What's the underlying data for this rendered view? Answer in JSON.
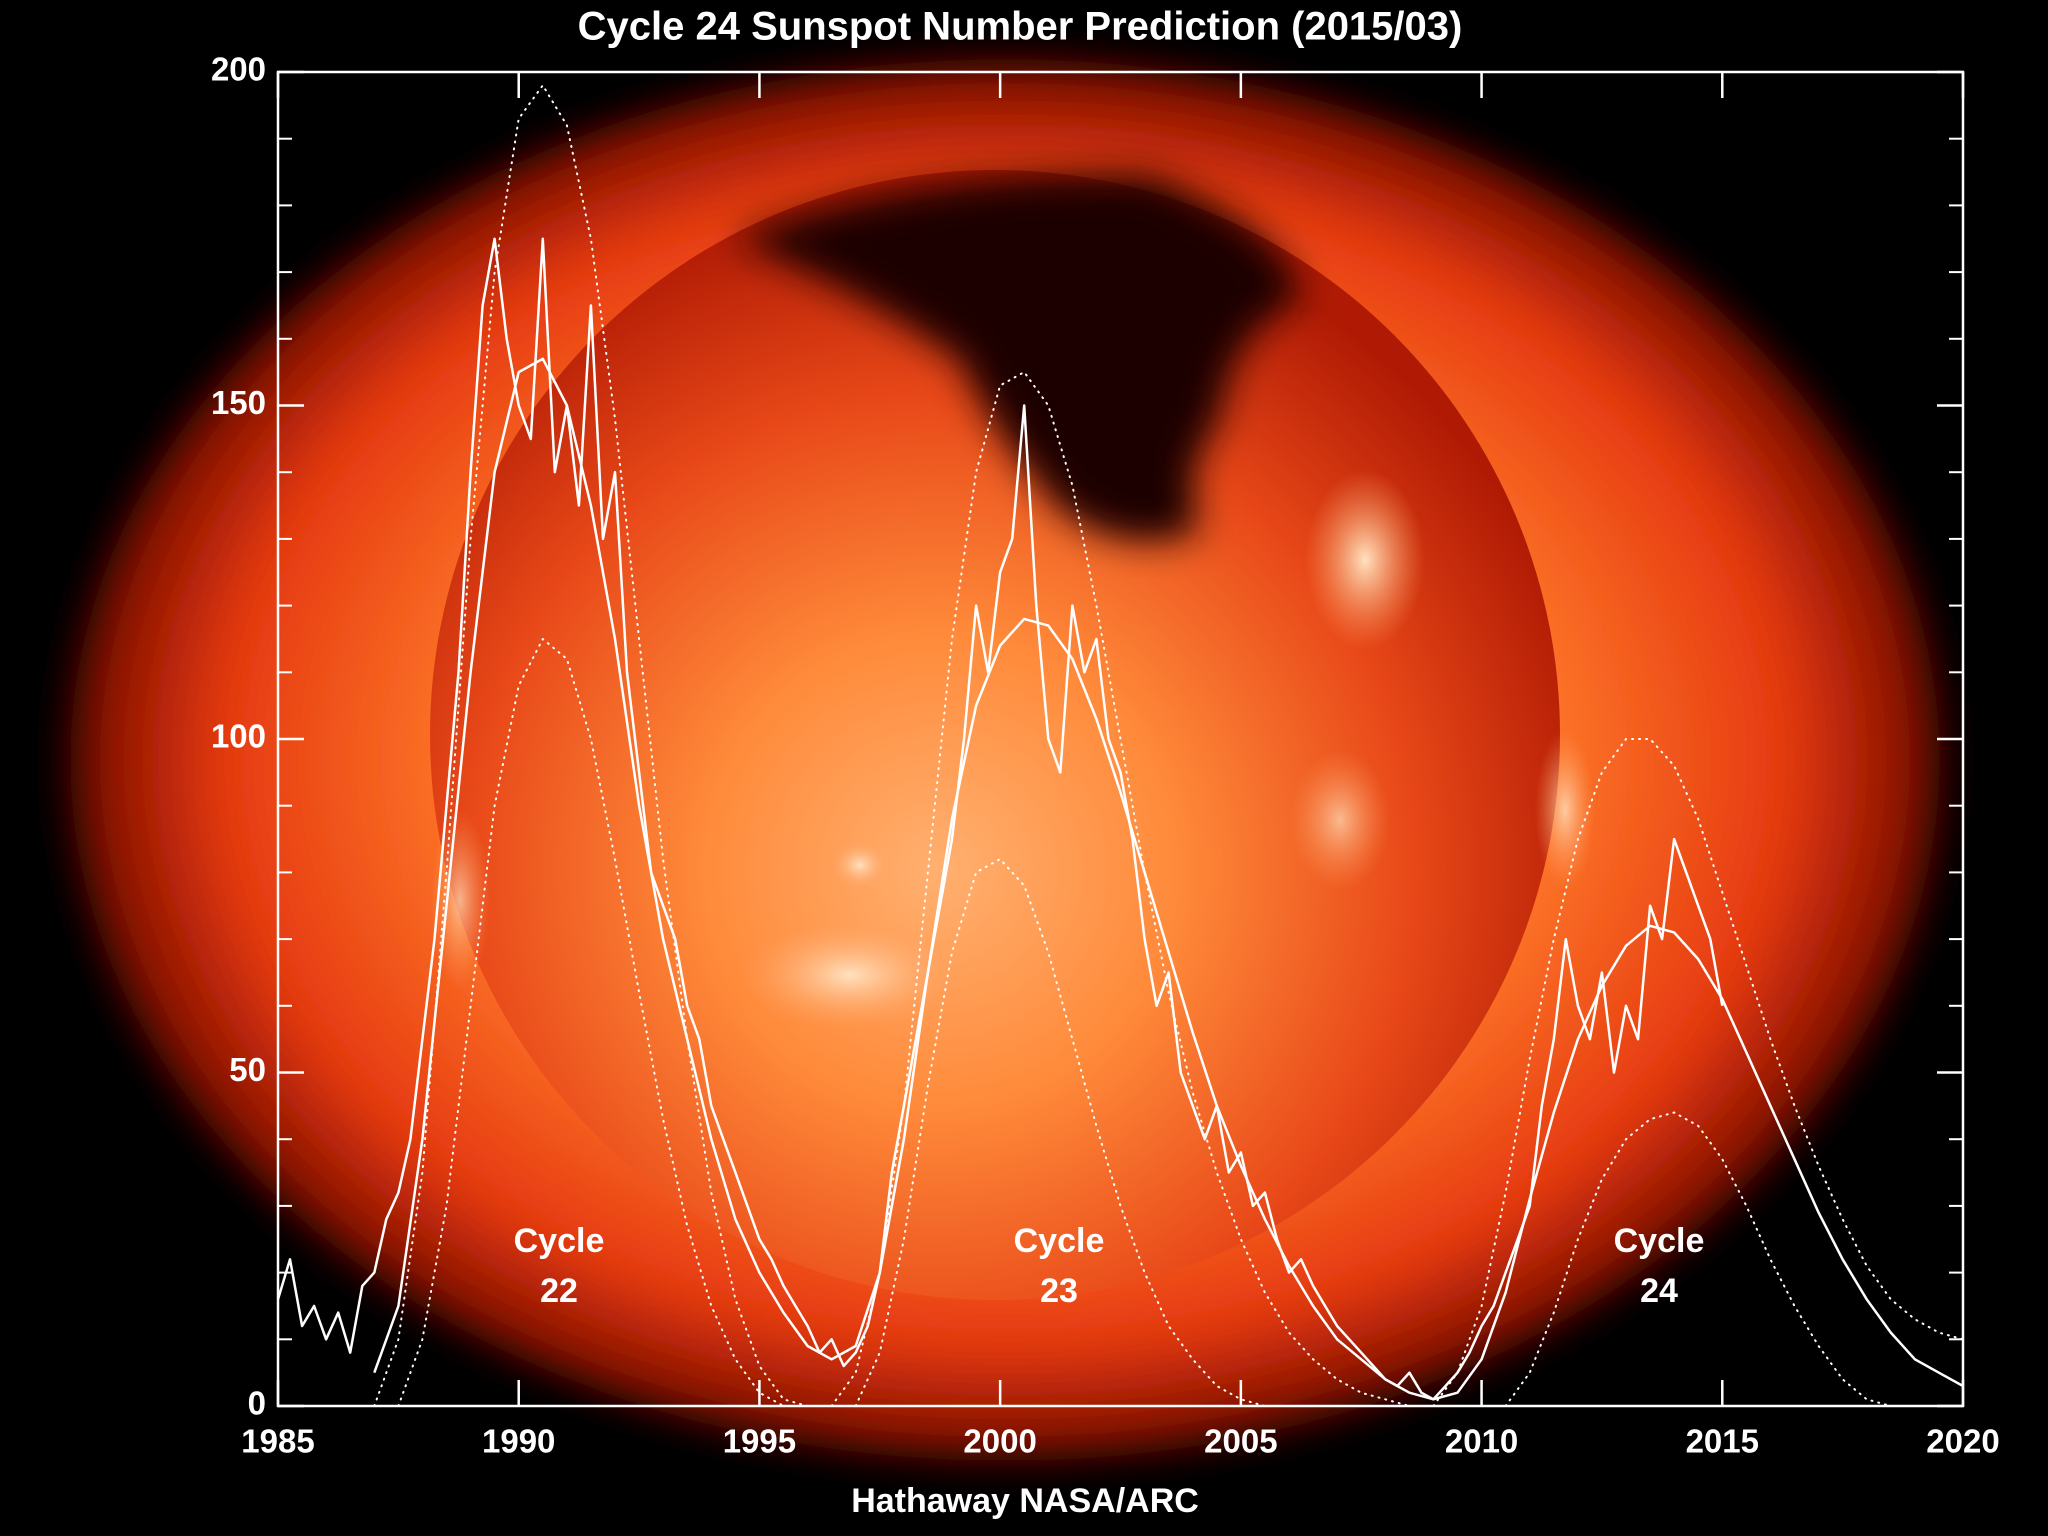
{
  "chart_data": {
    "type": "line",
    "title": "Cycle 24 Sunspot Number Prediction (2015/03)",
    "footer": "Hathaway  NASA/ARC",
    "xlim": [
      1985,
      2020
    ],
    "xticks": [
      1985,
      1990,
      1995,
      2000,
      2005,
      2010,
      2015,
      2020
    ],
    "ylim": [
      0,
      200
    ],
    "yticks": [
      0,
      50,
      100,
      150,
      200
    ],
    "minor_yticks": [
      10,
      20,
      30,
      40,
      60,
      70,
      80,
      90,
      110,
      120,
      130,
      140,
      160,
      170,
      180,
      190
    ],
    "annotations": [
      {
        "lines": [
          "Cycle",
          "22"
        ]
      },
      {
        "lines": [
          "Cycle",
          "23"
        ]
      },
      {
        "lines": [
          "Cycle",
          "24"
        ]
      }
    ],
    "series": [
      {
        "color": "#ffffff",
        "style": "solid",
        "width": 2.5,
        "x": [
          1985,
          1985.25,
          1985.5,
          1985.75,
          1986,
          1986.25,
          1986.5,
          1986.75,
          1987,
          1987.25,
          1987.5,
          1987.75,
          1988,
          1988.25,
          1988.5,
          1988.75,
          1989,
          1989.25,
          1989.5,
          1989.75,
          1990,
          1990.25,
          1990.5,
          1990.75,
          1991,
          1991.25,
          1991.5,
          1991.75,
          1992,
          1992.25,
          1992.5,
          1992.75,
          1993,
          1993.25,
          1993.5,
          1993.75,
          1994,
          1994.25,
          1994.5,
          1994.75,
          1995,
          1995.25,
          1995.5,
          1995.75,
          1996,
          1996.25,
          1996.5,
          1996.75,
          1997,
          1997.25,
          1997.5,
          1997.75,
          1998,
          1998.25,
          1998.5,
          1998.75,
          1999,
          1999.25,
          1999.5,
          1999.75,
          2000,
          2000.25,
          2000.5,
          2000.75,
          2001,
          2001.25,
          2001.5,
          2001.75,
          2002,
          2002.25,
          2002.5,
          2002.75,
          2003,
          2003.25,
          2003.5,
          2003.75,
          2004,
          2004.25,
          2004.5,
          2004.75,
          2005,
          2005.25,
          2005.5,
          2005.75,
          2006,
          2006.25,
          2006.5,
          2006.75,
          2007,
          2007.25,
          2007.5,
          2007.75,
          2008,
          2008.25,
          2008.5,
          2008.75,
          2009,
          2009.25,
          2009.5,
          2009.75,
          2010,
          2010.25,
          2010.5,
          2010.75,
          2011,
          2011.25,
          2011.5,
          2011.75,
          2012,
          2012.25,
          2012.5,
          2012.75,
          2013,
          2013.25,
          2013.5,
          2013.75,
          2014,
          2014.25,
          2014.5,
          2014.75,
          2015
        ],
        "values": [
          16,
          22,
          12,
          15,
          10,
          14,
          8,
          18,
          20,
          28,
          32,
          40,
          55,
          70,
          90,
          110,
          140,
          165,
          175,
          160,
          150,
          145,
          175,
          140,
          150,
          135,
          165,
          130,
          140,
          110,
          95,
          80,
          75,
          70,
          60,
          55,
          45,
          40,
          35,
          30,
          25,
          22,
          18,
          15,
          12,
          8,
          10,
          6,
          8,
          12,
          20,
          35,
          45,
          55,
          65,
          75,
          85,
          100,
          120,
          110,
          125,
          130,
          150,
          120,
          100,
          95,
          120,
          110,
          115,
          100,
          95,
          85,
          70,
          60,
          65,
          50,
          45,
          40,
          45,
          35,
          38,
          30,
          32,
          25,
          20,
          22,
          18,
          15,
          12,
          10,
          8,
          6,
          4,
          3,
          5,
          2,
          1,
          3,
          5,
          8,
          12,
          15,
          20,
          25,
          30,
          45,
          55,
          70,
          60,
          55,
          65,
          50,
          60,
          55,
          75,
          70,
          85,
          80,
          75,
          70,
          60
        ]
      },
      {
        "color": "#ffffff",
        "style": "solid",
        "width": 2.5,
        "x": [
          1987,
          1987.5,
          1988,
          1988.5,
          1989,
          1989.5,
          1990,
          1990.5,
          1991,
          1991.5,
          1992,
          1992.5,
          1993,
          1993.5,
          1994,
          1994.5,
          1995,
          1995.5,
          1996,
          1996.5,
          1997,
          1997.5,
          1998,
          1998.5,
          1999,
          1999.5,
          2000,
          2000.5,
          2001,
          2001.5,
          2002,
          2002.5,
          2003,
          2003.5,
          2004,
          2004.5,
          2005,
          2005.5,
          2006,
          2006.5,
          2007,
          2007.5,
          2008,
          2008.5,
          2009,
          2009.5,
          2010,
          2010.5,
          2011,
          2011.5,
          2012,
          2012.5,
          2013,
          2013.5,
          2014,
          2014.5,
          2015,
          2015.5,
          2016,
          2016.5,
          2017,
          2017.5,
          2018,
          2018.5,
          2019,
          2019.5,
          2020
        ],
        "values": [
          5,
          15,
          40,
          75,
          110,
          140,
          155,
          157,
          150,
          135,
          115,
          90,
          70,
          55,
          40,
          28,
          20,
          14,
          9,
          7,
          9,
          20,
          40,
          65,
          88,
          105,
          114,
          118,
          117,
          112,
          103,
          92,
          80,
          68,
          56,
          45,
          36,
          28,
          21,
          15,
          10,
          7,
          4,
          2,
          1,
          2,
          7,
          17,
          31,
          44,
          55,
          63,
          69,
          72,
          71,
          67,
          61,
          53,
          45,
          37,
          29,
          22,
          16,
          11,
          7,
          5,
          3
        ]
      },
      {
        "color": "#ffffff",
        "style": "dotted",
        "width": 2,
        "x": [
          1987,
          1987.5,
          1988,
          1988.5,
          1989,
          1989.5,
          1990,
          1990.5,
          1991,
          1991.5,
          1992,
          1992.5,
          1993,
          1993.5,
          1994,
          1994.5,
          1995,
          1995.5,
          1996
        ],
        "values": [
          0,
          10,
          35,
          80,
          130,
          170,
          193,
          198,
          192,
          175,
          148,
          115,
          82,
          55,
          32,
          16,
          6,
          1,
          0
        ]
      },
      {
        "color": "#ffffff",
        "style": "dotted",
        "width": 2,
        "x": [
          1987.5,
          1988,
          1988.5,
          1989,
          1989.5,
          1990,
          1990.5,
          1991,
          1991.5,
          1992,
          1992.5,
          1993,
          1993.5,
          1994,
          1994.5,
          1995,
          1995.5
        ],
        "values": [
          0,
          10,
          30,
          60,
          90,
          108,
          115,
          112,
          100,
          82,
          62,
          43,
          27,
          15,
          7,
          2,
          0
        ]
      },
      {
        "color": "#ffffff",
        "style": "dotted",
        "width": 2,
        "x": [
          1996.5,
          1997,
          1997.5,
          1998,
          1998.5,
          1999,
          1999.5,
          2000,
          2000.5,
          2001,
          2001.5,
          2002,
          2002.5,
          2003,
          2003.5,
          2004,
          2004.5,
          2005,
          2005.5,
          2006,
          2006.5,
          2007,
          2007.5,
          2008,
          2008.5,
          2009,
          2009.5
        ],
        "values": [
          0,
          5,
          20,
          45,
          80,
          115,
          140,
          153,
          155,
          150,
          138,
          120,
          100,
          80,
          62,
          47,
          35,
          25,
          17,
          11,
          7,
          4,
          2,
          1,
          0,
          0,
          0
        ]
      },
      {
        "color": "#ffffff",
        "style": "dotted",
        "width": 2,
        "x": [
          1997,
          1997.5,
          1998,
          1998.5,
          1999,
          1999.5,
          2000,
          2000.5,
          2001,
          2001.5,
          2002,
          2002.5,
          2003,
          2003.5,
          2004,
          2004.5,
          2005,
          2005.5,
          2006
        ],
        "values": [
          0,
          8,
          25,
          48,
          68,
          80,
          82,
          78,
          68,
          55,
          42,
          30,
          20,
          12,
          7,
          3,
          1,
          0,
          0
        ]
      },
      {
        "color": "#ffffff",
        "style": "dotted",
        "width": 2,
        "x": [
          2009,
          2009.5,
          2010,
          2010.5,
          2011,
          2011.5,
          2012,
          2012.5,
          2013,
          2013.5,
          2014,
          2014.5,
          2015,
          2015.5,
          2016,
          2016.5,
          2017,
          2017.5,
          2018,
          2018.5,
          2019,
          2019.5,
          2020
        ],
        "values": [
          0,
          5,
          15,
          32,
          52,
          70,
          85,
          95,
          100,
          100,
          96,
          88,
          77,
          66,
          55,
          45,
          36,
          28,
          21,
          16,
          13,
          11,
          10
        ]
      },
      {
        "color": "#ffffff",
        "style": "dotted",
        "width": 2,
        "x": [
          2010.5,
          2011,
          2011.5,
          2012,
          2012.5,
          2013,
          2013.5,
          2014,
          2014.5,
          2015,
          2015.5,
          2016,
          2016.5,
          2017,
          2017.5,
          2018,
          2018.5
        ],
        "values": [
          0,
          5,
          14,
          25,
          34,
          40,
          43,
          44,
          42,
          37,
          30,
          22,
          15,
          9,
          4,
          1,
          0
        ]
      }
    ]
  }
}
